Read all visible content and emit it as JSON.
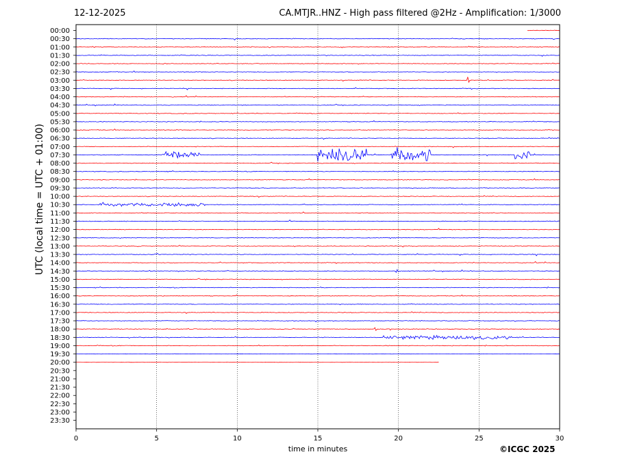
{
  "header": {
    "date": "12-12-2025",
    "title": "CA.MTJR..HNZ - High pass filtered @2Hz - Amplification: 1/3000"
  },
  "footer": {
    "copyright": "©ICGC 2025"
  },
  "colors": {
    "red_trace": "#ff0000",
    "blue_trace": "#0000ff",
    "axes": "#000000"
  },
  "chart_data": {
    "type": "line",
    "title": "CA.MTJR..HNZ - High pass filtered @2Hz - Amplification: 1/3000",
    "xlabel": "time in minutes",
    "ylabel": "UTC (local time = UTC + 01:00)",
    "xlim": [
      0,
      30
    ],
    "x_ticks": [
      "0",
      "5",
      "10",
      "15",
      "20",
      "25",
      "30"
    ],
    "y_ticks": [
      "00:00",
      "00:30",
      "01:00",
      "01:30",
      "02:00",
      "02:30",
      "03:00",
      "03:30",
      "04:00",
      "04:30",
      "05:00",
      "05:30",
      "06:00",
      "06:30",
      "07:00",
      "07:30",
      "08:00",
      "08:30",
      "09:00",
      "09:30",
      "10:00",
      "10:30",
      "11:00",
      "11:30",
      "12:00",
      "12:30",
      "13:00",
      "13:30",
      "14:00",
      "14:30",
      "15:00",
      "15:30",
      "16:00",
      "16:30",
      "17:00",
      "17:30",
      "18:00",
      "18:30",
      "19:00",
      "19:30",
      "20:00",
      "20:30",
      "21:00",
      "21:30",
      "22:00",
      "22:30",
      "23:00",
      "23:30"
    ],
    "grid": "vertical dotted lines at 5-minute intervals",
    "trace_color_pattern": [
      "red",
      "blue"
    ],
    "traces_end_minutes": 22.5,
    "last_trace_label": "20:00",
    "bursts": [
      {
        "row": "07:30",
        "start": 5.3,
        "end": 7.7,
        "amp": 0.7
      },
      {
        "row": "07:30",
        "start": 15.0,
        "end": 15.4,
        "amp": 1.5
      },
      {
        "row": "07:30",
        "start": 15.6,
        "end": 18.0,
        "amp": 1.6
      },
      {
        "row": "07:30",
        "start": 19.5,
        "end": 22.0,
        "amp": 2.0
      },
      {
        "row": "07:30",
        "start": 27.2,
        "end": 28.2,
        "amp": 1.0
      },
      {
        "row": "03:00",
        "start": 24.1,
        "end": 24.4,
        "amp": 0.8
      },
      {
        "row": "18:00",
        "start": 18.5,
        "end": 18.7,
        "amp": 1.0
      },
      {
        "row": "18:30",
        "start": 19.0,
        "end": 27.0,
        "amp": 0.45
      },
      {
        "row": "10:30",
        "start": 1.5,
        "end": 8.0,
        "amp": 0.45
      },
      {
        "row": "14:30",
        "start": 19.8,
        "end": 20.2,
        "amp": 0.6
      }
    ]
  }
}
